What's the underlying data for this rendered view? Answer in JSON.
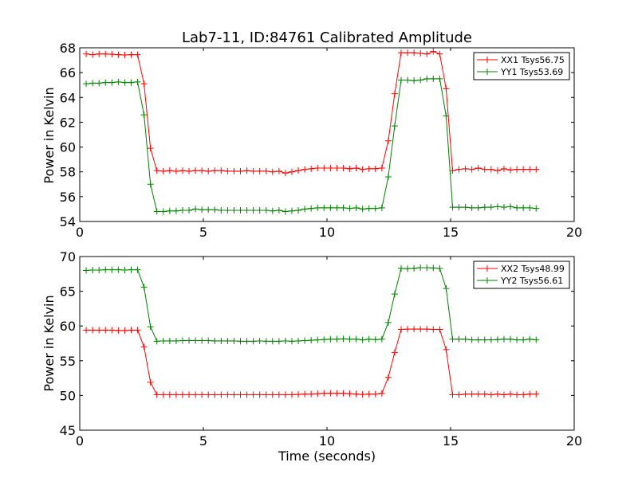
{
  "figure": {
    "title": "Lab7-11, ID:84761 Calibrated Amplitude"
  },
  "colors": {
    "red": "#ff0000",
    "green": "#008000",
    "axes": "#000000",
    "background": "#ffffff"
  },
  "chart_data": [
    {
      "type": "line",
      "title": "Lab7-11, ID:84761 Calibrated Amplitude",
      "xlabel": "",
      "ylabel": "Power in Kelvin",
      "xlim": [
        0,
        20
      ],
      "ylim": [
        54,
        68
      ],
      "xticks": [
        0,
        5,
        10,
        15,
        20
      ],
      "xtick_labels": [
        "0",
        "5",
        "10",
        "15",
        "20"
      ],
      "yticks": [
        54,
        56,
        58,
        60,
        62,
        64,
        66,
        68
      ],
      "ytick_labels": [
        "54",
        "56",
        "58",
        "60",
        "62",
        "64",
        "66",
        "68"
      ],
      "grid": false,
      "legend_position": "top-right",
      "marker": "plus",
      "series": [
        {
          "name": "XX1 Tsys56.75",
          "color": "#ff0000",
          "x": [
            0.26,
            0.52,
            0.78,
            1.04,
            1.3,
            1.56,
            1.82,
            2.08,
            2.34,
            2.6,
            2.86,
            3.12,
            3.38,
            3.64,
            3.9,
            4.16,
            4.42,
            4.68,
            4.94,
            5.2,
            5.46,
            5.72,
            5.98,
            6.24,
            6.5,
            6.76,
            7.02,
            7.28,
            7.54,
            7.8,
            8.06,
            8.32,
            8.58,
            8.84,
            9.1,
            9.36,
            9.62,
            9.88,
            10.14,
            10.4,
            10.66,
            10.92,
            11.18,
            11.44,
            11.7,
            11.96,
            12.22,
            12.48,
            12.74,
            13.0,
            13.26,
            13.52,
            13.78,
            14.04,
            14.3,
            14.56,
            14.82,
            15.08,
            15.34,
            15.6,
            15.86,
            16.12,
            16.38,
            16.64,
            16.9,
            17.16,
            17.42,
            17.68,
            17.94,
            18.2,
            18.46
          ],
          "y": [
            67.5,
            67.45,
            67.5,
            67.5,
            67.48,
            67.45,
            67.42,
            67.45,
            67.45,
            65.1,
            59.9,
            58.1,
            58.05,
            58.1,
            58.05,
            58.1,
            58.05,
            58.1,
            58.1,
            58.05,
            58.1,
            58.1,
            58.05,
            58.05,
            58.05,
            58.1,
            58.05,
            58.05,
            58.05,
            58.0,
            58.05,
            57.9,
            58.0,
            58.1,
            58.2,
            58.25,
            58.3,
            58.3,
            58.3,
            58.3,
            58.3,
            58.25,
            58.3,
            58.2,
            58.25,
            58.25,
            58.3,
            60.5,
            64.3,
            67.6,
            67.6,
            67.6,
            67.55,
            67.5,
            67.7,
            67.5,
            64.7,
            58.1,
            58.2,
            58.25,
            58.2,
            58.3,
            58.2,
            58.2,
            58.1,
            58.25,
            58.15,
            58.2,
            58.2,
            58.2,
            58.2
          ]
        },
        {
          "name": "YY1 Tsys53.69",
          "color": "#008000",
          "x": [
            0.26,
            0.52,
            0.78,
            1.04,
            1.3,
            1.56,
            1.82,
            2.08,
            2.34,
            2.6,
            2.86,
            3.12,
            3.38,
            3.64,
            3.9,
            4.16,
            4.42,
            4.68,
            4.94,
            5.2,
            5.46,
            5.72,
            5.98,
            6.24,
            6.5,
            6.76,
            7.02,
            7.28,
            7.54,
            7.8,
            8.06,
            8.32,
            8.58,
            8.84,
            9.1,
            9.36,
            9.62,
            9.88,
            10.14,
            10.4,
            10.66,
            10.92,
            11.18,
            11.44,
            11.7,
            11.96,
            12.22,
            12.48,
            12.74,
            13.0,
            13.26,
            13.52,
            13.78,
            14.04,
            14.3,
            14.56,
            14.82,
            15.08,
            15.34,
            15.6,
            15.86,
            16.12,
            16.38,
            16.64,
            16.9,
            17.16,
            17.42,
            17.68,
            17.94,
            18.2,
            18.46
          ],
          "y": [
            65.1,
            65.15,
            65.15,
            65.2,
            65.2,
            65.25,
            65.2,
            65.2,
            65.25,
            62.6,
            57.0,
            54.8,
            54.8,
            54.85,
            54.85,
            54.9,
            54.9,
            55.0,
            54.95,
            54.95,
            54.95,
            54.9,
            54.9,
            54.9,
            54.9,
            54.9,
            54.9,
            54.9,
            54.9,
            54.85,
            54.9,
            54.8,
            54.85,
            54.9,
            55.0,
            55.05,
            55.1,
            55.1,
            55.1,
            55.1,
            55.1,
            55.05,
            55.1,
            55.0,
            55.05,
            55.05,
            55.1,
            57.6,
            61.7,
            65.4,
            65.4,
            65.35,
            65.4,
            65.5,
            65.5,
            65.5,
            62.5,
            55.15,
            55.15,
            55.15,
            55.1,
            55.1,
            55.15,
            55.15,
            55.2,
            55.15,
            55.2,
            55.1,
            55.1,
            55.1,
            55.05
          ]
        }
      ]
    },
    {
      "type": "line",
      "title": "",
      "xlabel": "Time (seconds)",
      "ylabel": "Power in Kelvin",
      "xlim": [
        0,
        20
      ],
      "ylim": [
        45,
        70
      ],
      "xticks": [
        0,
        5,
        10,
        15,
        20
      ],
      "xtick_labels": [
        "0",
        "5",
        "10",
        "15",
        "20"
      ],
      "yticks": [
        45,
        50,
        55,
        60,
        65,
        70
      ],
      "ytick_labels": [
        "45",
        "50",
        "55",
        "60",
        "65",
        "70"
      ],
      "grid": false,
      "legend_position": "top-right",
      "marker": "plus",
      "series": [
        {
          "name": "XX2 Tsys48.99",
          "color": "#ff0000",
          "x": [
            0.26,
            0.52,
            0.78,
            1.04,
            1.3,
            1.56,
            1.82,
            2.08,
            2.34,
            2.6,
            2.86,
            3.12,
            3.38,
            3.64,
            3.9,
            4.16,
            4.42,
            4.68,
            4.94,
            5.2,
            5.46,
            5.72,
            5.98,
            6.24,
            6.5,
            6.76,
            7.02,
            7.28,
            7.54,
            7.8,
            8.06,
            8.32,
            8.58,
            8.84,
            9.1,
            9.36,
            9.62,
            9.88,
            10.14,
            10.4,
            10.66,
            10.92,
            11.18,
            11.44,
            11.7,
            11.96,
            12.22,
            12.48,
            12.74,
            13.0,
            13.26,
            13.52,
            13.78,
            14.04,
            14.3,
            14.56,
            14.82,
            15.08,
            15.34,
            15.6,
            15.86,
            16.12,
            16.38,
            16.64,
            16.9,
            17.16,
            17.42,
            17.68,
            17.94,
            18.2,
            18.46
          ],
          "y": [
            59.4,
            59.4,
            59.4,
            59.4,
            59.4,
            59.35,
            59.35,
            59.4,
            59.4,
            57.0,
            51.9,
            50.1,
            50.1,
            50.1,
            50.1,
            50.1,
            50.1,
            50.1,
            50.1,
            50.1,
            50.1,
            50.1,
            50.1,
            50.1,
            50.1,
            50.1,
            50.1,
            50.1,
            50.1,
            50.1,
            50.1,
            50.1,
            50.1,
            50.15,
            50.2,
            50.2,
            50.25,
            50.3,
            50.3,
            50.3,
            50.3,
            50.25,
            50.2,
            50.15,
            50.2,
            50.2,
            50.3,
            52.6,
            56.2,
            59.5,
            59.55,
            59.55,
            59.55,
            59.55,
            59.5,
            59.5,
            56.6,
            50.1,
            50.1,
            50.2,
            50.2,
            50.2,
            50.2,
            50.1,
            50.2,
            50.1,
            50.2,
            50.1,
            50.1,
            50.2,
            50.2
          ]
        },
        {
          "name": "YY2 Tsys56.61",
          "color": "#008000",
          "x": [
            0.26,
            0.52,
            0.78,
            1.04,
            1.3,
            1.56,
            1.82,
            2.08,
            2.34,
            2.6,
            2.86,
            3.12,
            3.38,
            3.64,
            3.9,
            4.16,
            4.42,
            4.68,
            4.94,
            5.2,
            5.46,
            5.72,
            5.98,
            6.24,
            6.5,
            6.76,
            7.02,
            7.28,
            7.54,
            7.8,
            8.06,
            8.32,
            8.58,
            8.84,
            9.1,
            9.36,
            9.62,
            9.88,
            10.14,
            10.4,
            10.66,
            10.92,
            11.18,
            11.44,
            11.7,
            11.96,
            12.22,
            12.48,
            12.74,
            13.0,
            13.26,
            13.52,
            13.78,
            14.04,
            14.3,
            14.56,
            14.82,
            15.08,
            15.34,
            15.6,
            15.86,
            16.12,
            16.38,
            16.64,
            16.9,
            17.16,
            17.42,
            17.68,
            17.94,
            18.2,
            18.46
          ],
          "y": [
            68.0,
            68.05,
            68.05,
            68.1,
            68.1,
            68.1,
            68.05,
            68.1,
            68.1,
            65.6,
            59.9,
            57.8,
            57.85,
            57.85,
            57.85,
            57.9,
            57.9,
            57.9,
            57.9,
            57.9,
            57.85,
            57.85,
            57.85,
            57.85,
            57.8,
            57.8,
            57.8,
            57.85,
            57.8,
            57.8,
            57.8,
            57.85,
            57.8,
            57.85,
            57.9,
            57.95,
            58.0,
            58.05,
            58.1,
            58.1,
            58.15,
            58.1,
            58.1,
            58.0,
            58.1,
            58.05,
            58.1,
            60.5,
            64.6,
            68.3,
            68.25,
            68.3,
            68.4,
            68.4,
            68.35,
            68.3,
            65.4,
            58.1,
            58.1,
            58.1,
            58.0,
            58.0,
            58.0,
            58.0,
            58.05,
            58.1,
            58.1,
            58.0,
            58.0,
            58.1,
            58.0
          ]
        }
      ]
    }
  ]
}
